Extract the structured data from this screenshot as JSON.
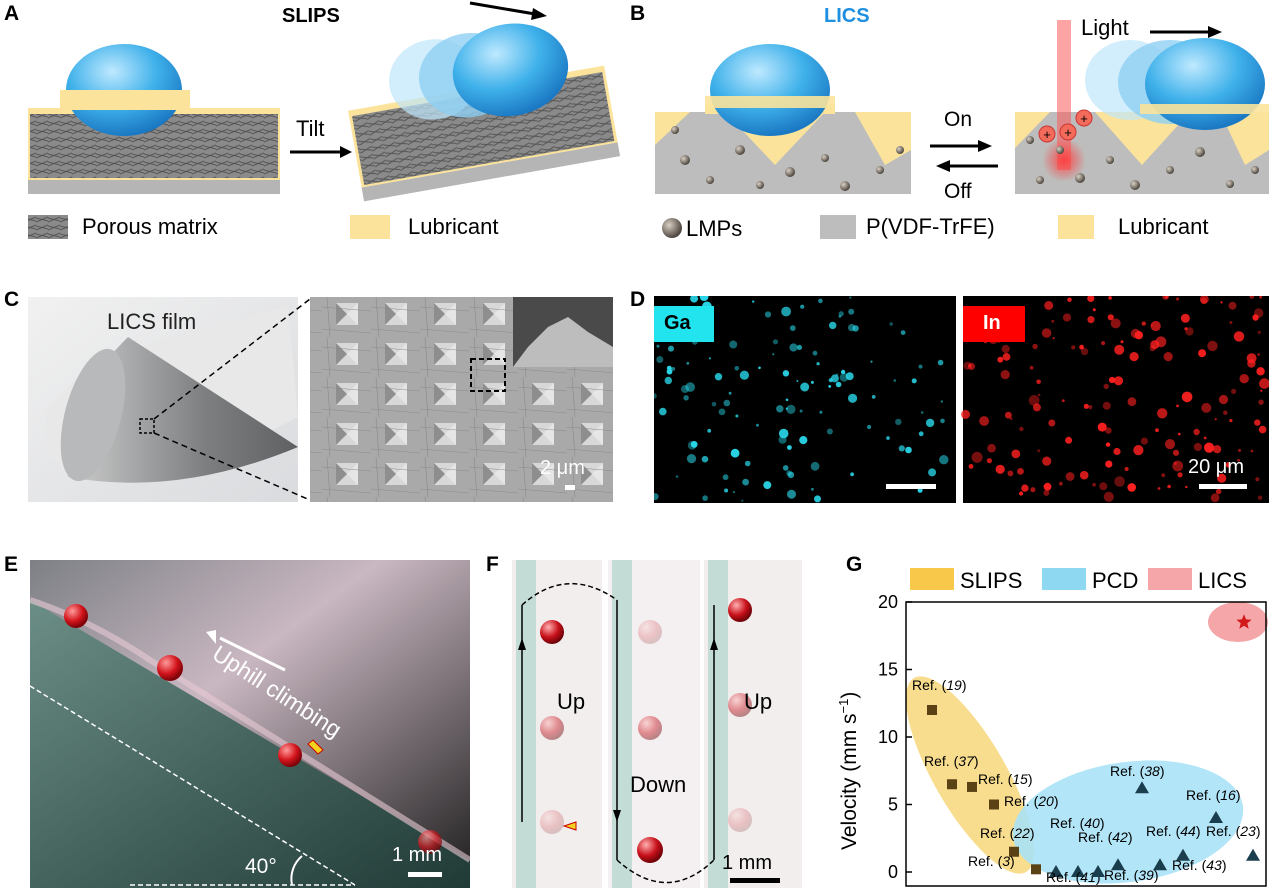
{
  "panels": {
    "A": {
      "label": "A",
      "title": "SLIPS",
      "tilt": "Tilt",
      "legend": [
        "Porous matrix",
        "Lubricant"
      ]
    },
    "B": {
      "label": "B",
      "title": "LICS",
      "light": "Light",
      "on": "On",
      "off": "Off",
      "legend": [
        "LMPs",
        "P(VDF-TrFE)",
        "Lubricant"
      ]
    },
    "C": {
      "label": "C",
      "film": "LICS film",
      "scale": "2 μm"
    },
    "D": {
      "label": "D",
      "ga": "Ga",
      "in": "In",
      "scale": "20 μm"
    },
    "E": {
      "label": "E",
      "climb": "Uphill climbing",
      "angle": "40°",
      "scale": "1 mm"
    },
    "F": {
      "label": "F",
      "up1": "Up",
      "down": "Down",
      "up2": "Up",
      "scale": "1 mm"
    },
    "G": {
      "label": "G"
    }
  },
  "colors": {
    "slips": "#f7c84a",
    "pcd": "#8fd8f2",
    "lics": "#f4a6a8",
    "lubricant": "#fbe39b",
    "matrix_gray": "#c8c8c8",
    "licsTitle": "#1f8fe0"
  },
  "chart_data": {
    "type": "scatter",
    "legend": [
      "SLIPS",
      "PCD",
      "LICS"
    ],
    "ylabel_main": "Velocity (mm s",
    "ylabel_sup": "−1",
    "ylabel_end": ")",
    "ylim": [
      0,
      20
    ],
    "yticks": [
      "0",
      "5",
      "10",
      "15",
      "20"
    ],
    "series": [
      {
        "name": "SLIPS",
        "marker": "square",
        "points": [
          {
            "y": 12,
            "ref": "19"
          },
          {
            "y": 6.5,
            "ref": "37"
          },
          {
            "y": 6.3,
            "ref": "15"
          },
          {
            "y": 5,
            "ref": "20"
          },
          {
            "y": 1.5,
            "ref": "22"
          },
          {
            "y": 0.2,
            "ref": "3"
          }
        ]
      },
      {
        "name": "PCD",
        "marker": "triangle",
        "points": [
          {
            "y": 6.2,
            "ref": "38"
          },
          {
            "y": 4,
            "ref": "16"
          },
          {
            "y": 1.2,
            "ref": "44"
          },
          {
            "y": 1.2,
            "ref": "23"
          },
          {
            "y": 0.5,
            "ref": "42"
          },
          {
            "y": 0.5,
            "ref": "39"
          },
          {
            "y": 0,
            "ref": "40"
          },
          {
            "y": 0,
            "ref": "41"
          },
          {
            "y": 0,
            "ref": "43"
          }
        ]
      },
      {
        "name": "LICS",
        "marker": "star",
        "points": [
          {
            "y": 18.5,
            "ref": ""
          }
        ]
      }
    ],
    "refPrefix": "Ref. (",
    "refPrefixShort": "Ref",
    "refSuffix": ")"
  }
}
